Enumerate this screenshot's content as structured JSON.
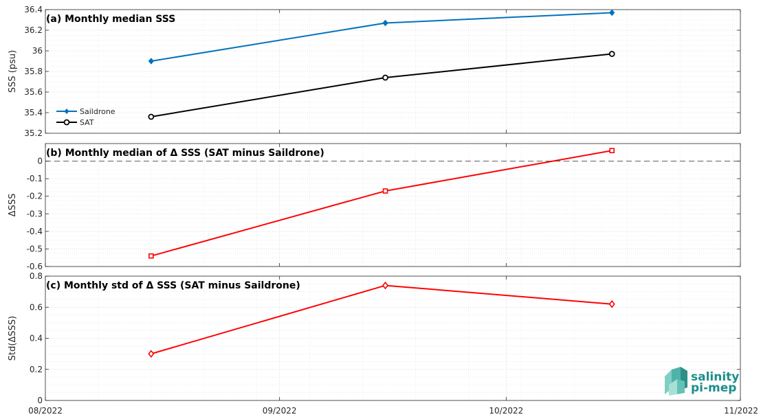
{
  "chart_data": [
    {
      "type": "line",
      "title": "(a) Monthly median SSS",
      "ylabel": "SSS (psu)",
      "ylim": [
        35.2,
        36.4
      ],
      "yticks": [
        "35.2",
        "35.4",
        "35.6",
        "35.8",
        "36",
        "36.2",
        "36.4"
      ],
      "yticks_values": [
        35.2,
        35.4,
        35.6,
        35.8,
        36.0,
        36.2,
        36.4
      ],
      "grid": true,
      "legend_position": "bottom-left",
      "x": [
        "2022-08-15",
        "2022-09-15",
        "2022-10-15"
      ],
      "series": [
        {
          "name": "Saildrone",
          "values": [
            35.9,
            36.27,
            36.37
          ],
          "color": "#0072bd",
          "marker": "diamond-filled"
        },
        {
          "name": "SAT",
          "values": [
            35.36,
            35.74,
            35.97
          ],
          "color": "#000000",
          "marker": "circle-open"
        }
      ]
    },
    {
      "type": "line",
      "title": "(b) Monthly median of Δ SSS (SAT minus Saildrone)",
      "ylabel": "ΔSSS",
      "ylim": [
        -0.6,
        0.1
      ],
      "yticks": [
        "-0.6",
        "-0.5",
        "-0.4",
        "-0.3",
        "-0.2",
        "-0.1",
        "0"
      ],
      "yticks_values": [
        -0.6,
        -0.5,
        -0.4,
        -0.3,
        -0.2,
        -0.1,
        0
      ],
      "grid": true,
      "reference_line": 0,
      "x": [
        "2022-08-15",
        "2022-09-15",
        "2022-10-15"
      ],
      "series": [
        {
          "values": [
            -0.54,
            -0.17,
            0.06
          ],
          "color": "#ff0000",
          "marker": "square-open"
        }
      ]
    },
    {
      "type": "line",
      "title": "(c) Monthly std of Δ SSS (SAT minus Saildrone)",
      "ylabel": "Std(ΔSSS)",
      "ylim": [
        0,
        0.8
      ],
      "yticks": [
        "0",
        "0.2",
        "0.4",
        "0.6",
        "0.8"
      ],
      "yticks_values": [
        0,
        0.2,
        0.4,
        0.6,
        0.8
      ],
      "grid": true,
      "x": [
        "2022-08-15",
        "2022-09-15",
        "2022-10-15"
      ],
      "series": [
        {
          "values": [
            0.3,
            0.74,
            0.62
          ],
          "color": "#ff0000",
          "marker": "diamond-open"
        }
      ]
    }
  ],
  "x_axis": {
    "range": [
      "2022-08-01",
      "2022-11-01"
    ],
    "ticks": [
      "2022-08-01",
      "2022-09-01",
      "2022-10-01",
      "2022-11-01"
    ],
    "tick_labels": [
      "08/2022",
      "09/2022",
      "10/2022",
      "11/2022"
    ]
  },
  "logo": {
    "line1": "salinity",
    "line2": "pi-mep",
    "color": "#1a8f8a"
  }
}
